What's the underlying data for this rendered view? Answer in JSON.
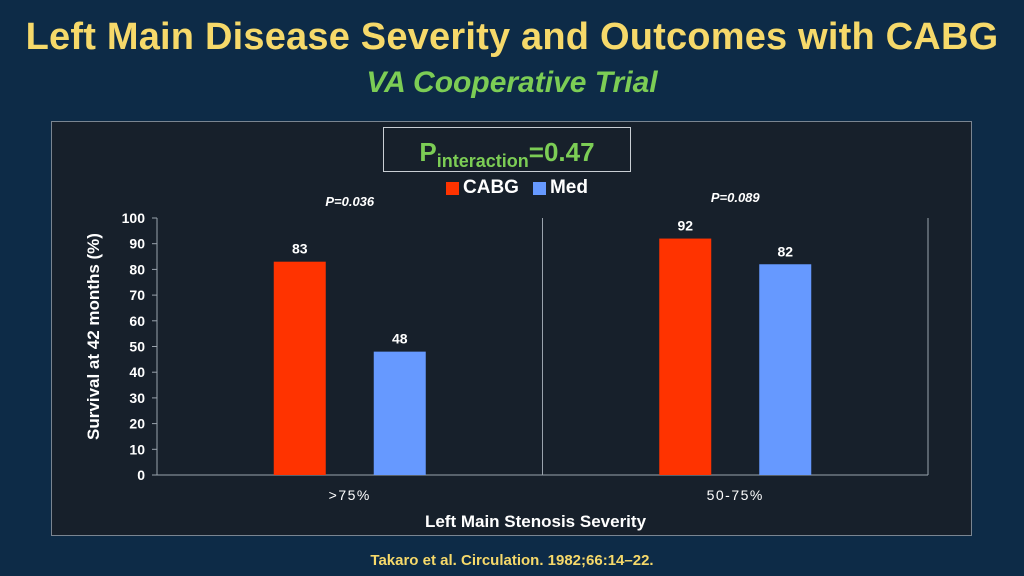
{
  "title": "Left Main Disease Severity and Outcomes with CABG",
  "subtitle": "VA Cooperative Trial",
  "p_interaction": {
    "prefix": "P",
    "sub": "interaction",
    "value": "=0.47"
  },
  "footer": "Takaro et al. Circulation. 1982;66:14–22.",
  "chart_data": {
    "type": "bar",
    "categories": [
      ">75%",
      "50-75%"
    ],
    "series": [
      {
        "name": "CABG",
        "values": [
          83,
          92
        ],
        "color": "#ff3300"
      },
      {
        "name": "Med",
        "values": [
          48,
          82
        ],
        "color": "#6699ff"
      }
    ],
    "category_pvalues": [
      "P=0.036",
      "P=0.089"
    ],
    "xlabel": "Left Main Stenosis Severity",
    "ylabel": "Survival at 42 months (%)",
    "ylim": [
      0,
      100
    ],
    "yticks": [
      0,
      10,
      20,
      30,
      40,
      50,
      60,
      70,
      80,
      90,
      100
    ],
    "legend_position": "top",
    "grid": false
  }
}
